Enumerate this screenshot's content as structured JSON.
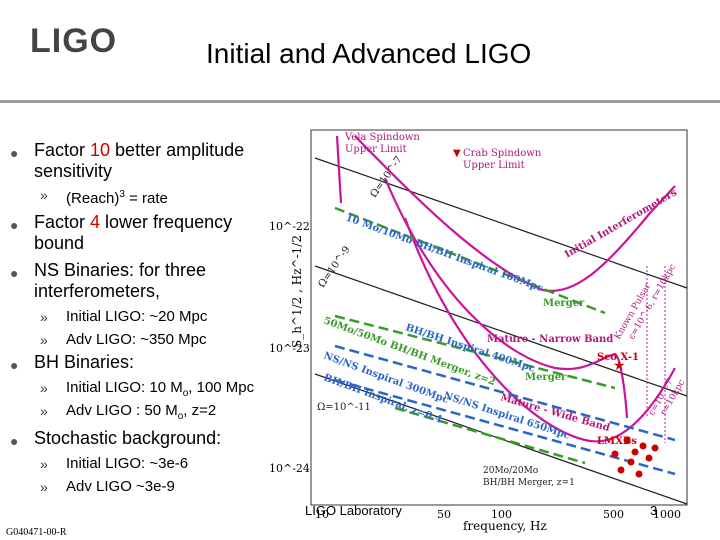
{
  "header": {
    "logo": "LIGO",
    "title": "Initial and Advanced LIGO"
  },
  "bullets": {
    "b1": {
      "pre": "Factor ",
      "num": "10",
      "post": " better amplitude sensitivity"
    },
    "b1_sub": {
      "text": "(Reach)",
      "sup": "3",
      "post": " = rate"
    },
    "b2": {
      "pre": "Factor ",
      "num": "4",
      "post": " lower frequency bound"
    },
    "b3": "NS Binaries: for three interferometers,",
    "b3_subs": [
      "Initial LIGO: ~20 Mpc",
      "Adv LIGO: ~350 Mpc"
    ],
    "b4": "BH Binaries:",
    "b4_sub1": {
      "pre": "Initial LIGO: 10 M",
      "sub": "o",
      "post": ", 100 Mpc"
    },
    "b4_sub2": {
      "pre": "Adv LIGO : 50 M",
      "sub": "o",
      "post": ", z=2"
    },
    "b5": "Stochastic background:",
    "b5_subs": [
      "Initial LIGO: ~3e-6",
      "Adv LIGO ~3e-9"
    ]
  },
  "footer": {
    "lab": "LIGO Laboratory",
    "page": "3",
    "docid": "G040471-00-R"
  },
  "colors": {
    "curve": "#c8169c",
    "green": "#3a9a2a",
    "blue": "#2a66c8",
    "annot": "#b0187c",
    "red": "#cc0000"
  },
  "chart_data": {
    "type": "line",
    "xlabel": "frequency, Hz",
    "ylabel": "S_h^1/2 , Hz^-1/2",
    "x_scale": "log",
    "y_scale": "log",
    "x_ticks": [
      "10",
      "50",
      "100",
      "500",
      "1000"
    ],
    "y_ticks": [
      "10^-22",
      "10^-23",
      "10^-24"
    ],
    "annotations": {
      "vela": [
        "Vela Spindown",
        "Upper Limit"
      ],
      "crab": [
        "Crab Spindown",
        "Upper Limit"
      ],
      "initial_ifo": "Initial Interferometers",
      "bh10": "10 Mo/10Mo BH/BH Inspiral 100Mpc",
      "merger1": "Merger",
      "bh50": "50Mo/50Mo BH/BH Merger, z=2",
      "bh400": "BH/BH Inspiral 400Mpc",
      "merger2": "Merger",
      "nsns": "NS/NS Inspiral 300Mpc",
      "nsns650": "NS/NS Inspiral 650Mpc",
      "bh_z04": "BH/BH Inspiral, z=0.4",
      "mature_nb": "Mature - Narrow Band",
      "mature_wb": "Mature - Wide Band",
      "scox1": "Sco X-1",
      "lmxbs": "LMXBs",
      "bh20": [
        "20Mo/20Mo",
        "BH/BH Merger, z=1"
      ],
      "known_pulsar": [
        "Known Pulsar",
        "ε=10^-6, r=10kpc"
      ],
      "pulsar2": [
        "ε=10^-7",
        "r=10kpc"
      ],
      "omega7": "Ω=10^-7",
      "omega9": "Ω=10^-9",
      "omega11": "Ω=10^-11"
    }
  }
}
